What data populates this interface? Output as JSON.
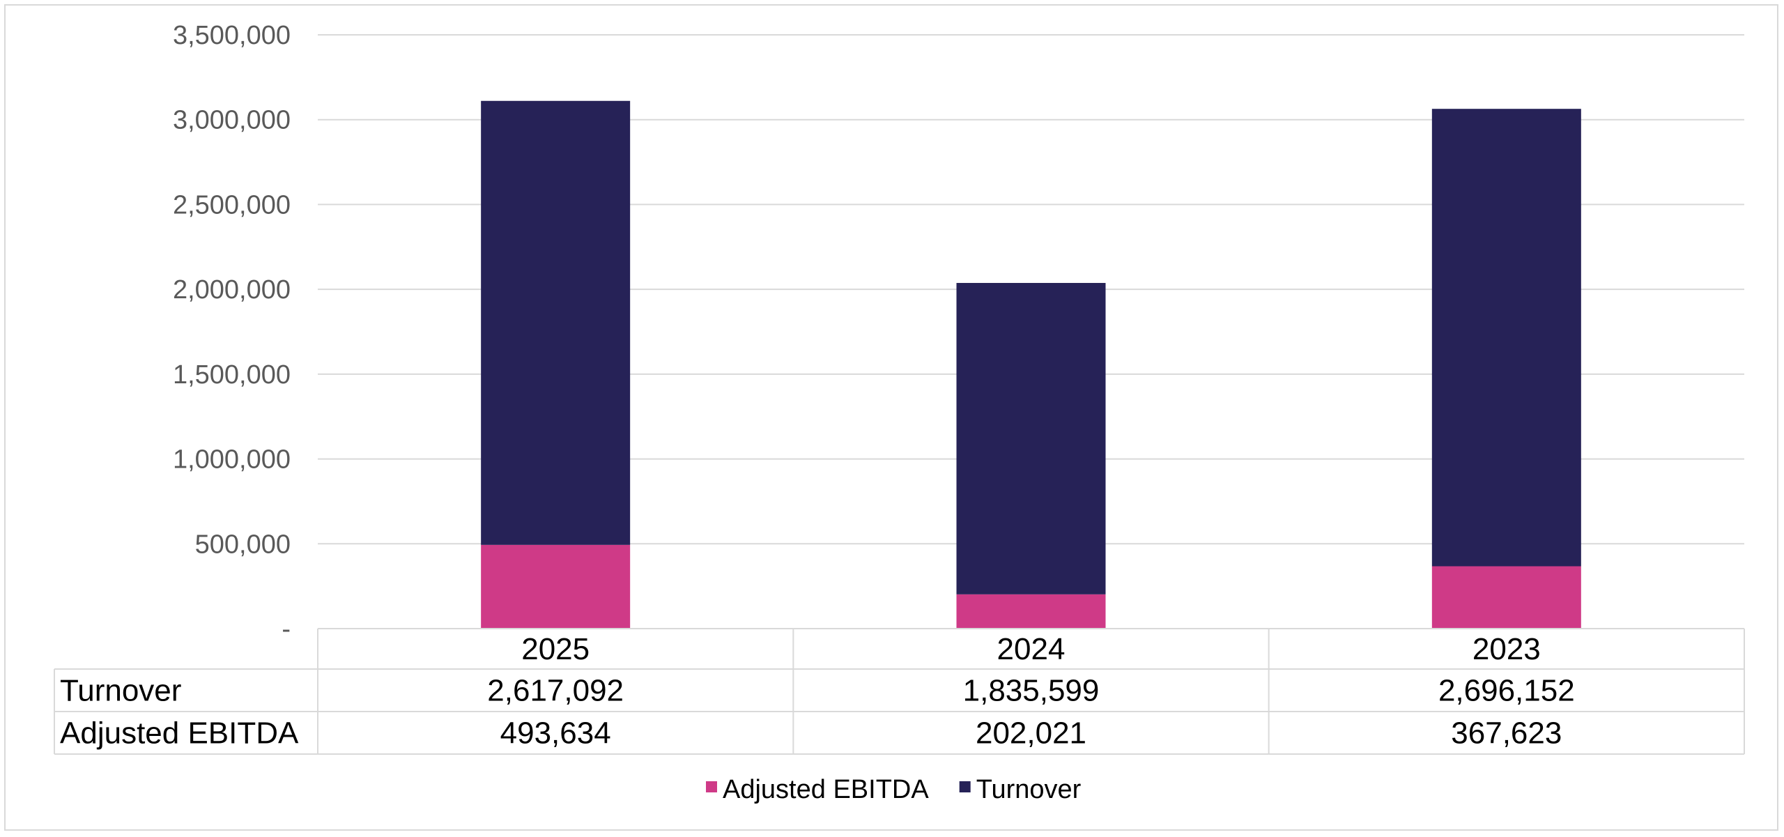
{
  "chart_data": {
    "type": "bar",
    "stacked": true,
    "title": "",
    "xlabel": "",
    "ylabel": "",
    "categories": [
      "2025",
      "2024",
      "2023"
    ],
    "series": [
      {
        "name": "Adjusted EBITDA",
        "values": [
          493634,
          202021,
          367623
        ],
        "value_labels": [
          "493,634",
          "202,021",
          "367,623"
        ],
        "color": "#CF3A87"
      },
      {
        "name": "Turnover",
        "values": [
          2617092,
          1835599,
          2696152
        ],
        "value_labels": [
          "2,617,092",
          "1,835,599",
          "2,696,152"
        ],
        "color": "#262257"
      }
    ],
    "ylim": [
      0,
      3500000
    ],
    "yticks": [
      0,
      500000,
      1000000,
      1500000,
      2000000,
      2500000,
      3000000,
      3500000
    ],
    "ytick_labels": [
      "-",
      "500,000",
      "1,000,000",
      "1,500,000",
      "2,000,000",
      "2,500,000",
      "3,000,000",
      "3,500,000"
    ],
    "grid": true,
    "legend": "bottom",
    "data_table": true,
    "table_row_order": [
      "Turnover",
      "Adjusted EBITDA"
    ]
  },
  "colors": {
    "gridline": "#d9d9d9",
    "axis_text": "#595959",
    "table_border": "#d9d9d9"
  }
}
